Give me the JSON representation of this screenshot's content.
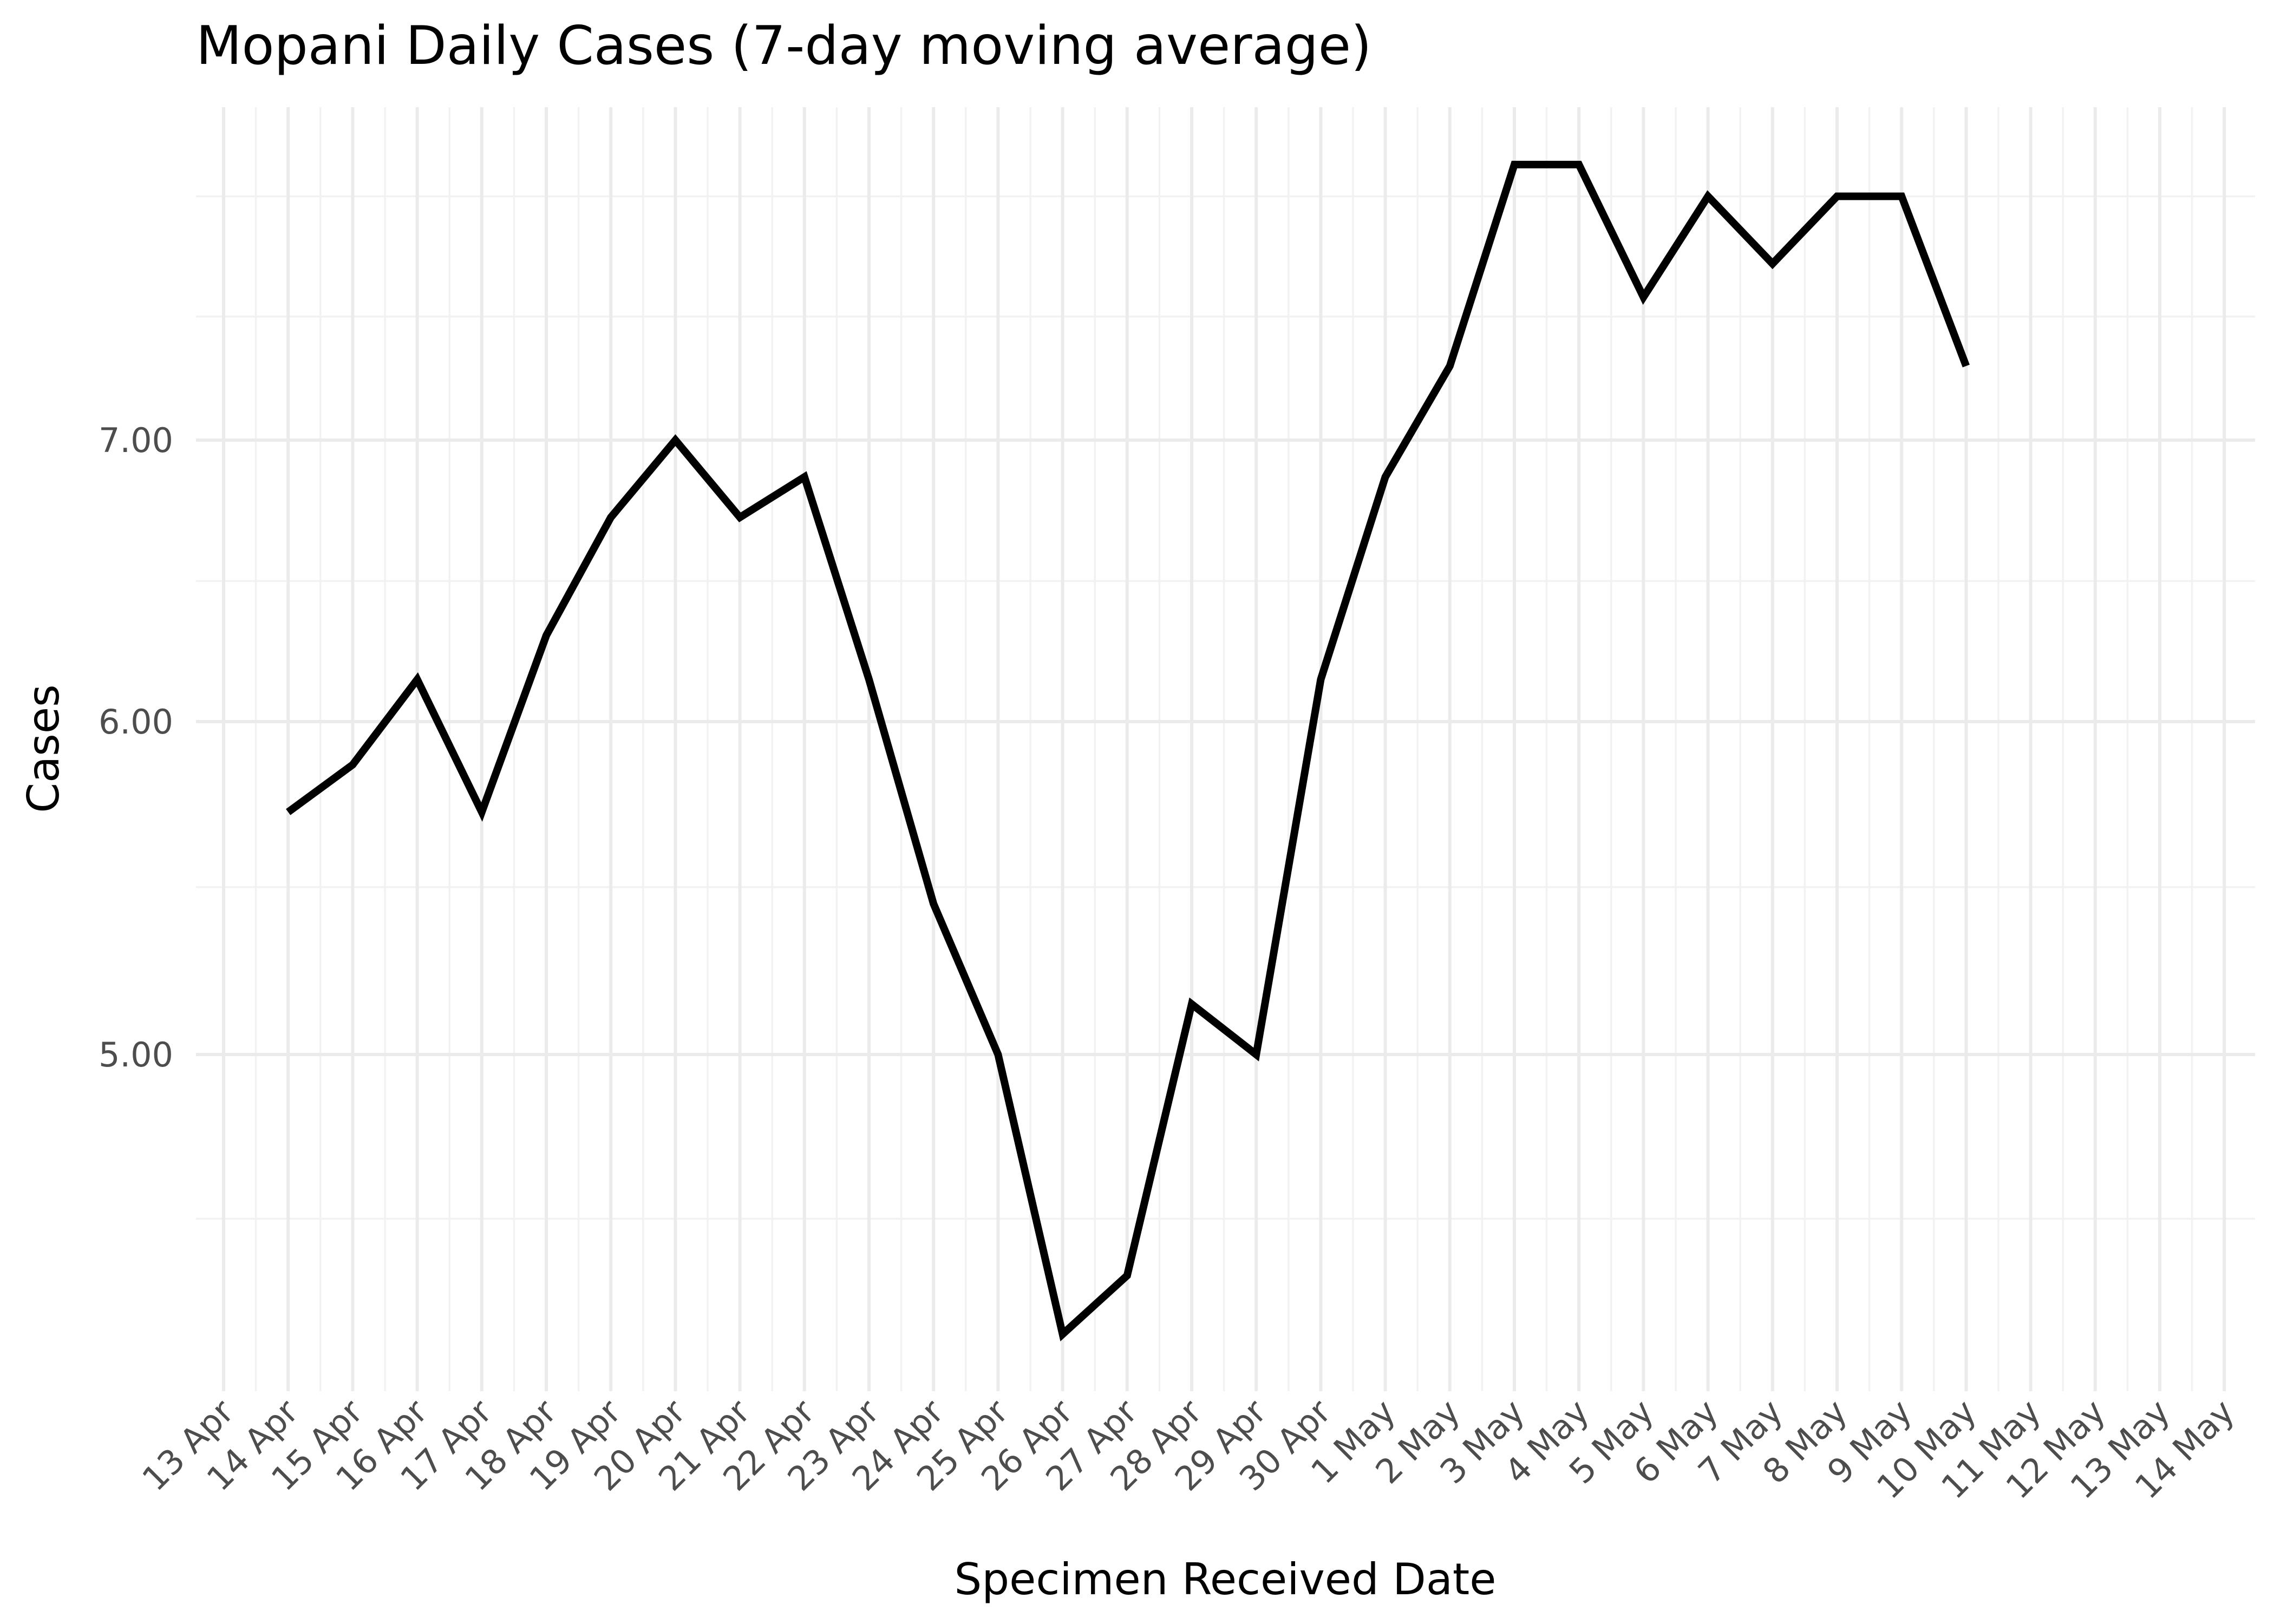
{
  "chart_data": {
    "type": "line",
    "title": "Mopani Daily Cases (7-day moving average)",
    "xlabel": "Specimen Received Date",
    "ylabel": "Cases",
    "y_scale": "log",
    "ylim": [
      4.3,
      8.4
    ],
    "x_tick_labels": [
      "13 Apr",
      "14 Apr",
      "15 Apr",
      "16 Apr",
      "17 Apr",
      "18 Apr",
      "19 Apr",
      "20 Apr",
      "21 Apr",
      "22 Apr",
      "23 Apr",
      "24 Apr",
      "25 Apr",
      "26 Apr",
      "27 Apr",
      "28 Apr",
      "29 Apr",
      "30 Apr",
      "1 May",
      "2 May",
      "3 May",
      "4 May",
      "5 May",
      "6 May",
      "7 May",
      "8 May",
      "9 May",
      "10 May",
      "11 May",
      "12 May",
      "13 May",
      "14 May"
    ],
    "y_ticks": [
      {
        "value": 5,
        "label": "5.00"
      },
      {
        "value": 6,
        "label": "6.00"
      },
      {
        "value": 7,
        "label": "7.00"
      }
    ],
    "y_minor_ticks": [
      4.57,
      5.48,
      6.48,
      7.49,
      8.0
    ],
    "grid": true,
    "series": [
      {
        "color": "#000000",
        "points": [
          {
            "x": "14 Apr",
            "y": 5.71
          },
          {
            "x": "15 Apr",
            "y": 5.86
          },
          {
            "x": "16 Apr",
            "y": 6.14
          },
          {
            "x": "17 Apr",
            "y": 5.71
          },
          {
            "x": "18 Apr",
            "y": 6.29
          },
          {
            "x": "19 Apr",
            "y": 6.71
          },
          {
            "x": "20 Apr",
            "y": 7.0
          },
          {
            "x": "21 Apr",
            "y": 6.71
          },
          {
            "x": "22 Apr",
            "y": 6.86
          },
          {
            "x": "23 Apr",
            "y": 6.14
          },
          {
            "x": "24 Apr",
            "y": 5.43
          },
          {
            "x": "25 Apr",
            "y": 5.0
          },
          {
            "x": "26 Apr",
            "y": 4.29
          },
          {
            "x": "27 Apr",
            "y": 4.43
          },
          {
            "x": "28 Apr",
            "y": 5.14
          },
          {
            "x": "29 Apr",
            "y": 5.0
          },
          {
            "x": "30 Apr",
            "y": 6.14
          },
          {
            "x": "1 May",
            "y": 6.86
          },
          {
            "x": "2 May",
            "y": 7.29
          },
          {
            "x": "3 May",
            "y": 8.14
          },
          {
            "x": "4 May",
            "y": 8.14
          },
          {
            "x": "5 May",
            "y": 7.57
          },
          {
            "x": "6 May",
            "y": 8.0
          },
          {
            "x": "7 May",
            "y": 7.71
          },
          {
            "x": "8 May",
            "y": 8.0
          },
          {
            "x": "9 May",
            "y": 8.0
          },
          {
            "x": "10 May",
            "y": 7.29
          }
        ]
      }
    ]
  }
}
